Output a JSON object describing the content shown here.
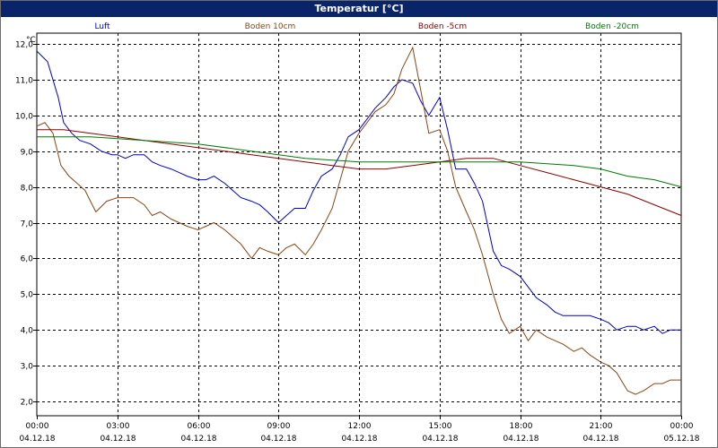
{
  "window": {
    "title": "Temperatur [°C]"
  },
  "chart_data": {
    "type": "line",
    "title": "Temperatur [°C]",
    "ylabel": "°C",
    "ylim": [
      1.6,
      12.3
    ],
    "xlim": [
      "04.12.18 00:00",
      "05.12.18 00:00"
    ],
    "grid": true,
    "legend_position": "top",
    "y_ticks": [
      "2,0",
      "3,0",
      "4,0",
      "5,0",
      "6,0",
      "7,0",
      "8,0",
      "9,0",
      "10,0",
      "11,0",
      "12,0"
    ],
    "x_ticks": [
      {
        "time": "00:00",
        "date": "04.12.18"
      },
      {
        "time": "03:00",
        "date": "04.12.18"
      },
      {
        "time": "06:00",
        "date": "04.12.18"
      },
      {
        "time": "09:00",
        "date": "04.12.18"
      },
      {
        "time": "12:00",
        "date": "04.12.18"
      },
      {
        "time": "15:00",
        "date": "04.12.18"
      },
      {
        "time": "18:00",
        "date": "04.12.18"
      },
      {
        "time": "21:00",
        "date": "04.12.18"
      },
      {
        "time": "00:00",
        "date": "05.12.18"
      }
    ],
    "series": [
      {
        "name": "Luft",
        "color": "#0000cc",
        "x_hours": [
          0,
          0.4,
          0.8,
          1,
          1.3,
          1.6,
          2,
          2.4,
          2.8,
          3,
          3.3,
          3.6,
          4,
          4.3,
          4.6,
          5,
          5.3,
          5.6,
          6,
          6.3,
          6.6,
          7,
          7.3,
          7.6,
          8,
          8.3,
          8.6,
          9,
          9.3,
          9.6,
          10,
          10.3,
          10.6,
          11,
          11.3,
          11.6,
          12,
          12.3,
          12.6,
          13,
          13.3,
          13.6,
          14,
          14.3,
          14.6,
          15,
          15.3,
          15.6,
          16,
          16.3,
          16.6,
          17,
          17.3,
          17.6,
          18,
          18.3,
          18.6,
          19,
          19.3,
          19.6,
          20,
          20.3,
          20.6,
          21,
          21.3,
          21.6,
          22,
          22.3,
          22.6,
          23,
          23.3,
          23.6,
          24
        ],
        "values": [
          11.8,
          11.5,
          10.5,
          9.8,
          9.5,
          9.3,
          9.2,
          9.0,
          8.9,
          8.9,
          8.8,
          8.9,
          8.9,
          8.7,
          8.6,
          8.5,
          8.4,
          8.3,
          8.2,
          8.2,
          8.3,
          8.1,
          7.9,
          7.7,
          7.6,
          7.5,
          7.3,
          7.0,
          7.2,
          7.4,
          7.4,
          7.9,
          8.3,
          8.5,
          8.9,
          9.4,
          9.6,
          9.9,
          10.2,
          10.5,
          10.8,
          11.0,
          10.9,
          10.4,
          10.0,
          10.5,
          9.6,
          8.5,
          8.5,
          8.1,
          7.6,
          6.2,
          5.8,
          5.7,
          5.5,
          5.2,
          4.9,
          4.7,
          4.5,
          4.4,
          4.4,
          4.4,
          4.4,
          4.3,
          4.2,
          4.0,
          4.1,
          4.1,
          4.0,
          4.1,
          3.9,
          4.0,
          4.0
        ]
      },
      {
        "name": "Boden 10cm",
        "color": "#8b4513",
        "x_hours": [
          0,
          0.3,
          0.6,
          0.9,
          1.2,
          1.5,
          1.8,
          2.2,
          2.6,
          3,
          3.3,
          3.6,
          4,
          4.3,
          4.6,
          5,
          5.3,
          5.6,
          6,
          6.3,
          6.6,
          7,
          7.3,
          7.6,
          8,
          8.3,
          8.6,
          9,
          9.3,
          9.6,
          10,
          10.3,
          10.6,
          11,
          11.3,
          11.6,
          12,
          12.3,
          12.6,
          13,
          13.3,
          13.6,
          14,
          14.3,
          14.6,
          15,
          15.3,
          15.6,
          16,
          16.3,
          16.6,
          17,
          17.3,
          17.6,
          18,
          18.3,
          18.6,
          19,
          19.3,
          19.6,
          20,
          20.3,
          20.6,
          21,
          21.3,
          21.6,
          22,
          22.3,
          22.6,
          23,
          23.3,
          23.6,
          24
        ],
        "values": [
          9.7,
          9.8,
          9.5,
          8.6,
          8.3,
          8.1,
          7.9,
          7.3,
          7.6,
          7.7,
          7.7,
          7.7,
          7.5,
          7.2,
          7.3,
          7.1,
          7.0,
          6.9,
          6.8,
          6.9,
          7.0,
          6.8,
          6.6,
          6.4,
          6.0,
          6.3,
          6.2,
          6.1,
          6.3,
          6.4,
          6.1,
          6.4,
          6.8,
          7.4,
          8.2,
          9.0,
          9.5,
          9.8,
          10.1,
          10.3,
          10.6,
          11.3,
          11.9,
          10.7,
          9.5,
          9.6,
          9.0,
          8.0,
          7.3,
          6.8,
          6.1,
          5.0,
          4.3,
          3.9,
          4.1,
          3.7,
          4.0,
          3.8,
          3.7,
          3.6,
          3.4,
          3.5,
          3.3,
          3.1,
          3.0,
          2.8,
          2.3,
          2.2,
          2.3,
          2.5,
          2.5,
          2.6,
          2.6
        ]
      },
      {
        "name": "Boden -5cm",
        "color": "#8b0000",
        "x_hours": [
          0,
          1,
          2,
          3,
          4,
          5,
          6,
          7,
          8,
          9,
          10,
          11,
          12,
          13,
          14,
          15,
          16,
          17,
          18,
          19,
          20,
          21,
          22,
          23,
          24
        ],
        "values": [
          9.6,
          9.6,
          9.5,
          9.4,
          9.3,
          9.2,
          9.1,
          9.0,
          8.9,
          8.8,
          8.7,
          8.6,
          8.5,
          8.5,
          8.6,
          8.7,
          8.8,
          8.8,
          8.6,
          8.4,
          8.2,
          8.0,
          7.8,
          7.5,
          7.2
        ]
      },
      {
        "name": "Boden -20cm",
        "color": "#007a00",
        "x_hours": [
          0,
          2,
          4,
          6,
          8,
          10,
          12,
          14,
          16,
          18,
          20,
          21,
          22,
          23,
          24
        ],
        "values": [
          9.4,
          9.4,
          9.3,
          9.2,
          9.0,
          8.8,
          8.7,
          8.7,
          8.7,
          8.7,
          8.6,
          8.5,
          8.3,
          8.2,
          8.0
        ]
      }
    ]
  }
}
